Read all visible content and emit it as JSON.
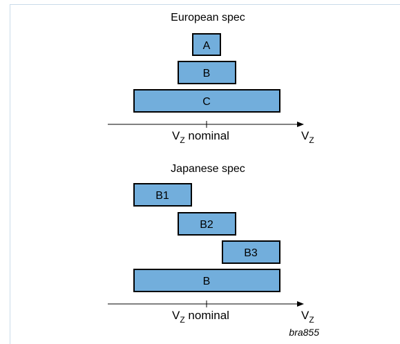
{
  "european": {
    "title": "European spec",
    "boxes": [
      "A",
      "B",
      "C"
    ]
  },
  "japanese": {
    "title": "Japanese spec",
    "boxes": [
      "B1",
      "B2",
      "B3",
      "B"
    ]
  },
  "axis": {
    "nominal_main": "V",
    "nominal_sub": "Z",
    "nominal_suffix": " nominal",
    "axis_main": "V",
    "axis_sub": "Z"
  },
  "reference": "bra855",
  "colors": {
    "box_fill": "#72aedc",
    "frame_border": "#c9dbe9"
  }
}
